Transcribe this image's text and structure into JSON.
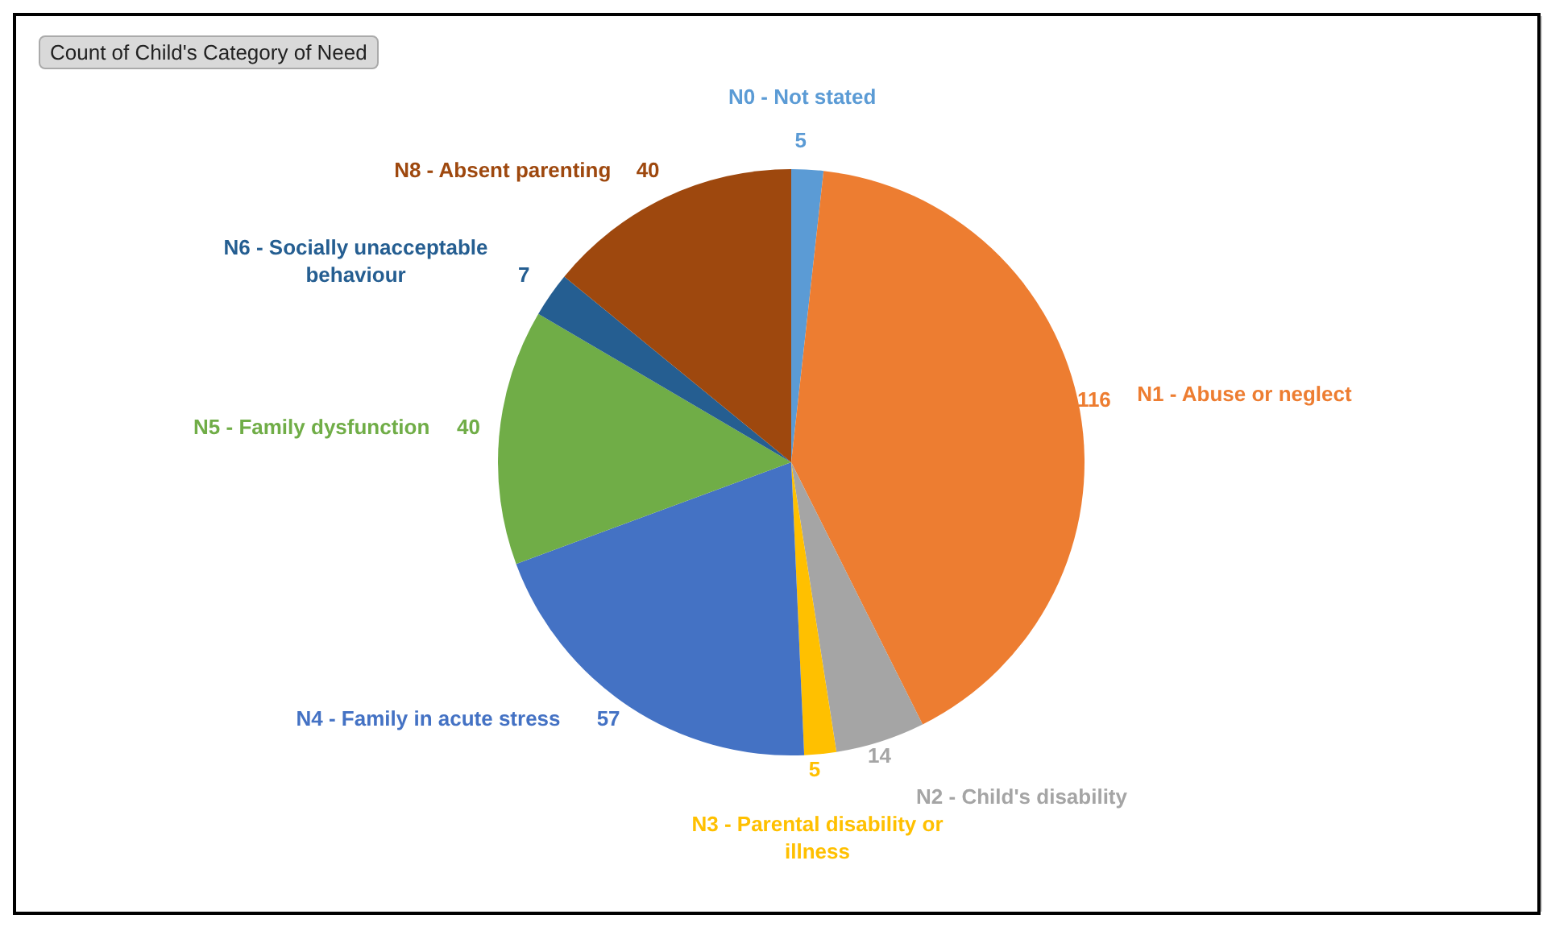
{
  "chart_data": {
    "type": "pie",
    "title": "Count of Child's Category of Need",
    "categories": [
      "N0 - Not stated",
      "N1 - Abuse or neglect",
      "N2 - Child's disability",
      "N3 - Parental disability or illness",
      "N4 - Family in acute stress",
      "N5 - Family dysfunction",
      "N6 - Socially unacceptable behaviour",
      "N8 - Absent parenting"
    ],
    "values": [
      5,
      116,
      14,
      5,
      57,
      40,
      7,
      40
    ],
    "colors": [
      "#5b9bd5",
      "#ed7d31",
      "#a5a5a5",
      "#ffc000",
      "#4472c4",
      "#70ad47",
      "#255e91",
      "#9e480e"
    ],
    "data_labels": true,
    "legend": false
  }
}
